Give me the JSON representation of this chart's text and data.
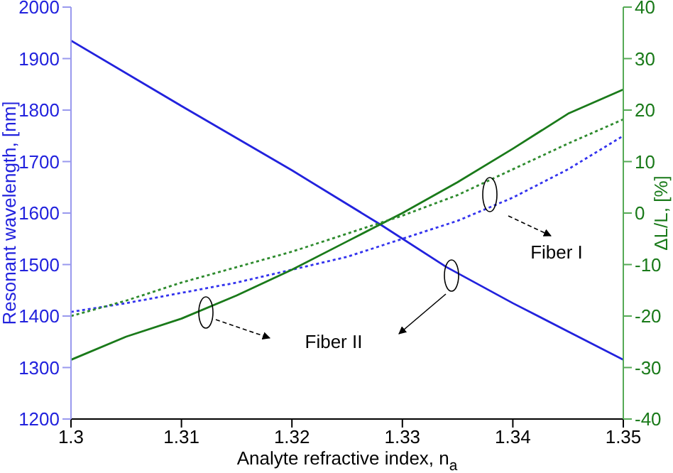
{
  "chart_data": {
    "type": "line",
    "xlabel": "Analyte refractive index, n$_{a}$",
    "ylabel": "Resonant wavelength, [nm]",
    "y2label": "ΔL/L, [%]",
    "xlim": [
      1.3,
      1.35
    ],
    "xticks": [
      1.3,
      1.31,
      1.32,
      1.33,
      1.34,
      1.35
    ],
    "ylim": [
      1200,
      2000
    ],
    "yticks": [
      1200,
      1300,
      1400,
      1500,
      1600,
      1700,
      1800,
      1900,
      2000
    ],
    "y2lim": [
      -40,
      40
    ],
    "y2ticks": [
      -40,
      -30,
      -20,
      -10,
      0,
      10,
      20,
      30,
      40
    ],
    "marker": "none",
    "series": [
      {
        "color": "#2222dd",
        "line_style": "solid",
        "x": [
          1.3,
          1.31,
          1.32,
          1.328,
          1.334,
          1.34,
          1.345,
          1.35
        ],
        "values": [
          1935,
          1808,
          1683,
          1578,
          1495,
          1425,
          1370,
          1315
        ]
      },
      {
        "color": "#3333ee",
        "line_style": "dotted",
        "x": [
          1.3,
          1.305,
          1.31,
          1.315,
          1.32,
          1.325,
          1.33,
          1.335,
          1.34,
          1.345,
          1.35
        ],
        "values": [
          1408,
          1425,
          1445,
          1465,
          1490,
          1515,
          1550,
          1585,
          1630,
          1685,
          1750
        ]
      },
      {
        "color": "#1a7a1a",
        "line_style": "solid",
        "axis": "y2",
        "x": [
          1.3,
          1.305,
          1.31,
          1.315,
          1.32,
          1.325,
          1.33,
          1.335,
          1.34,
          1.345,
          1.35
        ],
        "values": [
          -28.5,
          -24,
          -20.5,
          -16,
          -11,
          -5.5,
          0,
          6,
          12.5,
          19.3,
          24
        ]
      },
      {
        "color": "#2e8b2e",
        "line_style": "dotted",
        "axis": "y2",
        "x": [
          1.3,
          1.305,
          1.31,
          1.315,
          1.32,
          1.325,
          1.33,
          1.335,
          1.34,
          1.345,
          1.35
        ],
        "values": [
          -20,
          -17,
          -13.5,
          -10.5,
          -7.5,
          -4,
          -0.5,
          3.5,
          8.5,
          13.5,
          18.2
        ]
      }
    ],
    "annotations": [
      "Fiber I",
      "Fiber II"
    ]
  }
}
